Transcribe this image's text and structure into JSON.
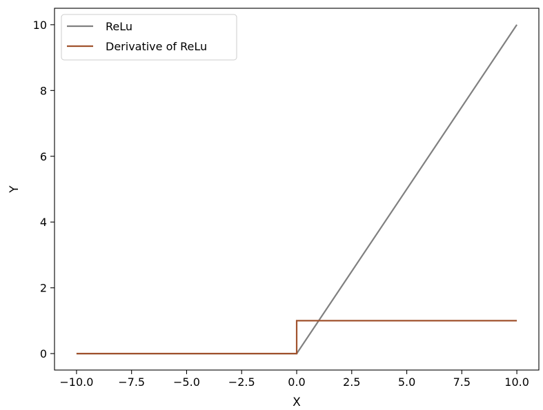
{
  "chart_data": {
    "type": "line",
    "title": "",
    "xlabel": "X",
    "ylabel": "Y",
    "xlim": [
      -11.0,
      11.0
    ],
    "ylim": [
      -0.5,
      10.5
    ],
    "xticks": [
      -10.0,
      -7.5,
      -5.0,
      -2.5,
      0.0,
      2.5,
      5.0,
      7.5,
      10.0
    ],
    "xtick_labels": [
      "−10.0",
      "−7.5",
      "−5.0",
      "−2.5",
      "0.0",
      "2.5",
      "5.0",
      "7.5",
      "10.0"
    ],
    "yticks": [
      0,
      2,
      4,
      6,
      8,
      10
    ],
    "ytick_labels": [
      "0",
      "2",
      "4",
      "6",
      "8",
      "10"
    ],
    "grid": false,
    "legend_position": "top-left",
    "series": [
      {
        "name": "ReLu",
        "color": "#808080",
        "x": [
          -10,
          0,
          10
        ],
        "y": [
          0,
          0,
          10
        ]
      },
      {
        "name": "Derivative of ReLu",
        "color": "#a0522d",
        "x": [
          -10,
          0,
          0,
          10
        ],
        "y": [
          0,
          0,
          1,
          1
        ]
      }
    ]
  }
}
